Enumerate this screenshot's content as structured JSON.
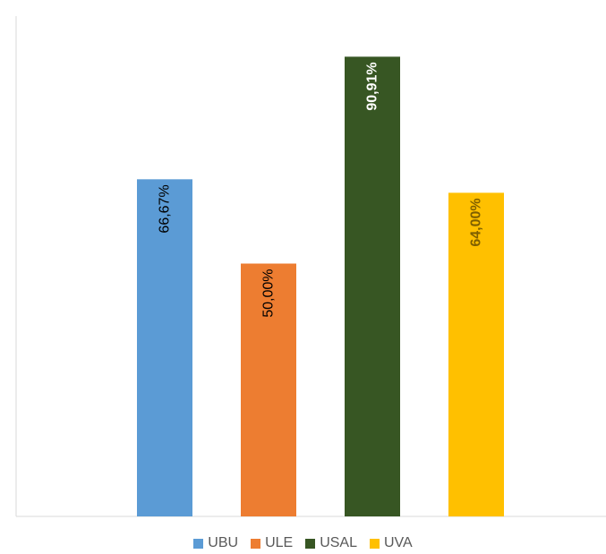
{
  "chart_data": {
    "type": "bar",
    "categories": [
      "UBU",
      "ULE",
      "USAL",
      "UVA"
    ],
    "values": [
      66.67,
      50.0,
      90.91,
      64.0
    ],
    "data_labels": [
      "66,67%",
      "50,00%",
      "90,91%",
      "64,00%"
    ],
    "colors": [
      "#5B9BD5",
      "#ED7D31",
      "#375623",
      "#FFC000"
    ],
    "label_colors": [
      "#000000",
      "#000000",
      "#ffffff",
      "#7F6000"
    ],
    "label_bold": [
      false,
      false,
      true,
      true
    ],
    "ylim": [
      0,
      100
    ],
    "grid": false,
    "legend": "bottom",
    "title": "",
    "xlabel": "",
    "ylabel": ""
  }
}
